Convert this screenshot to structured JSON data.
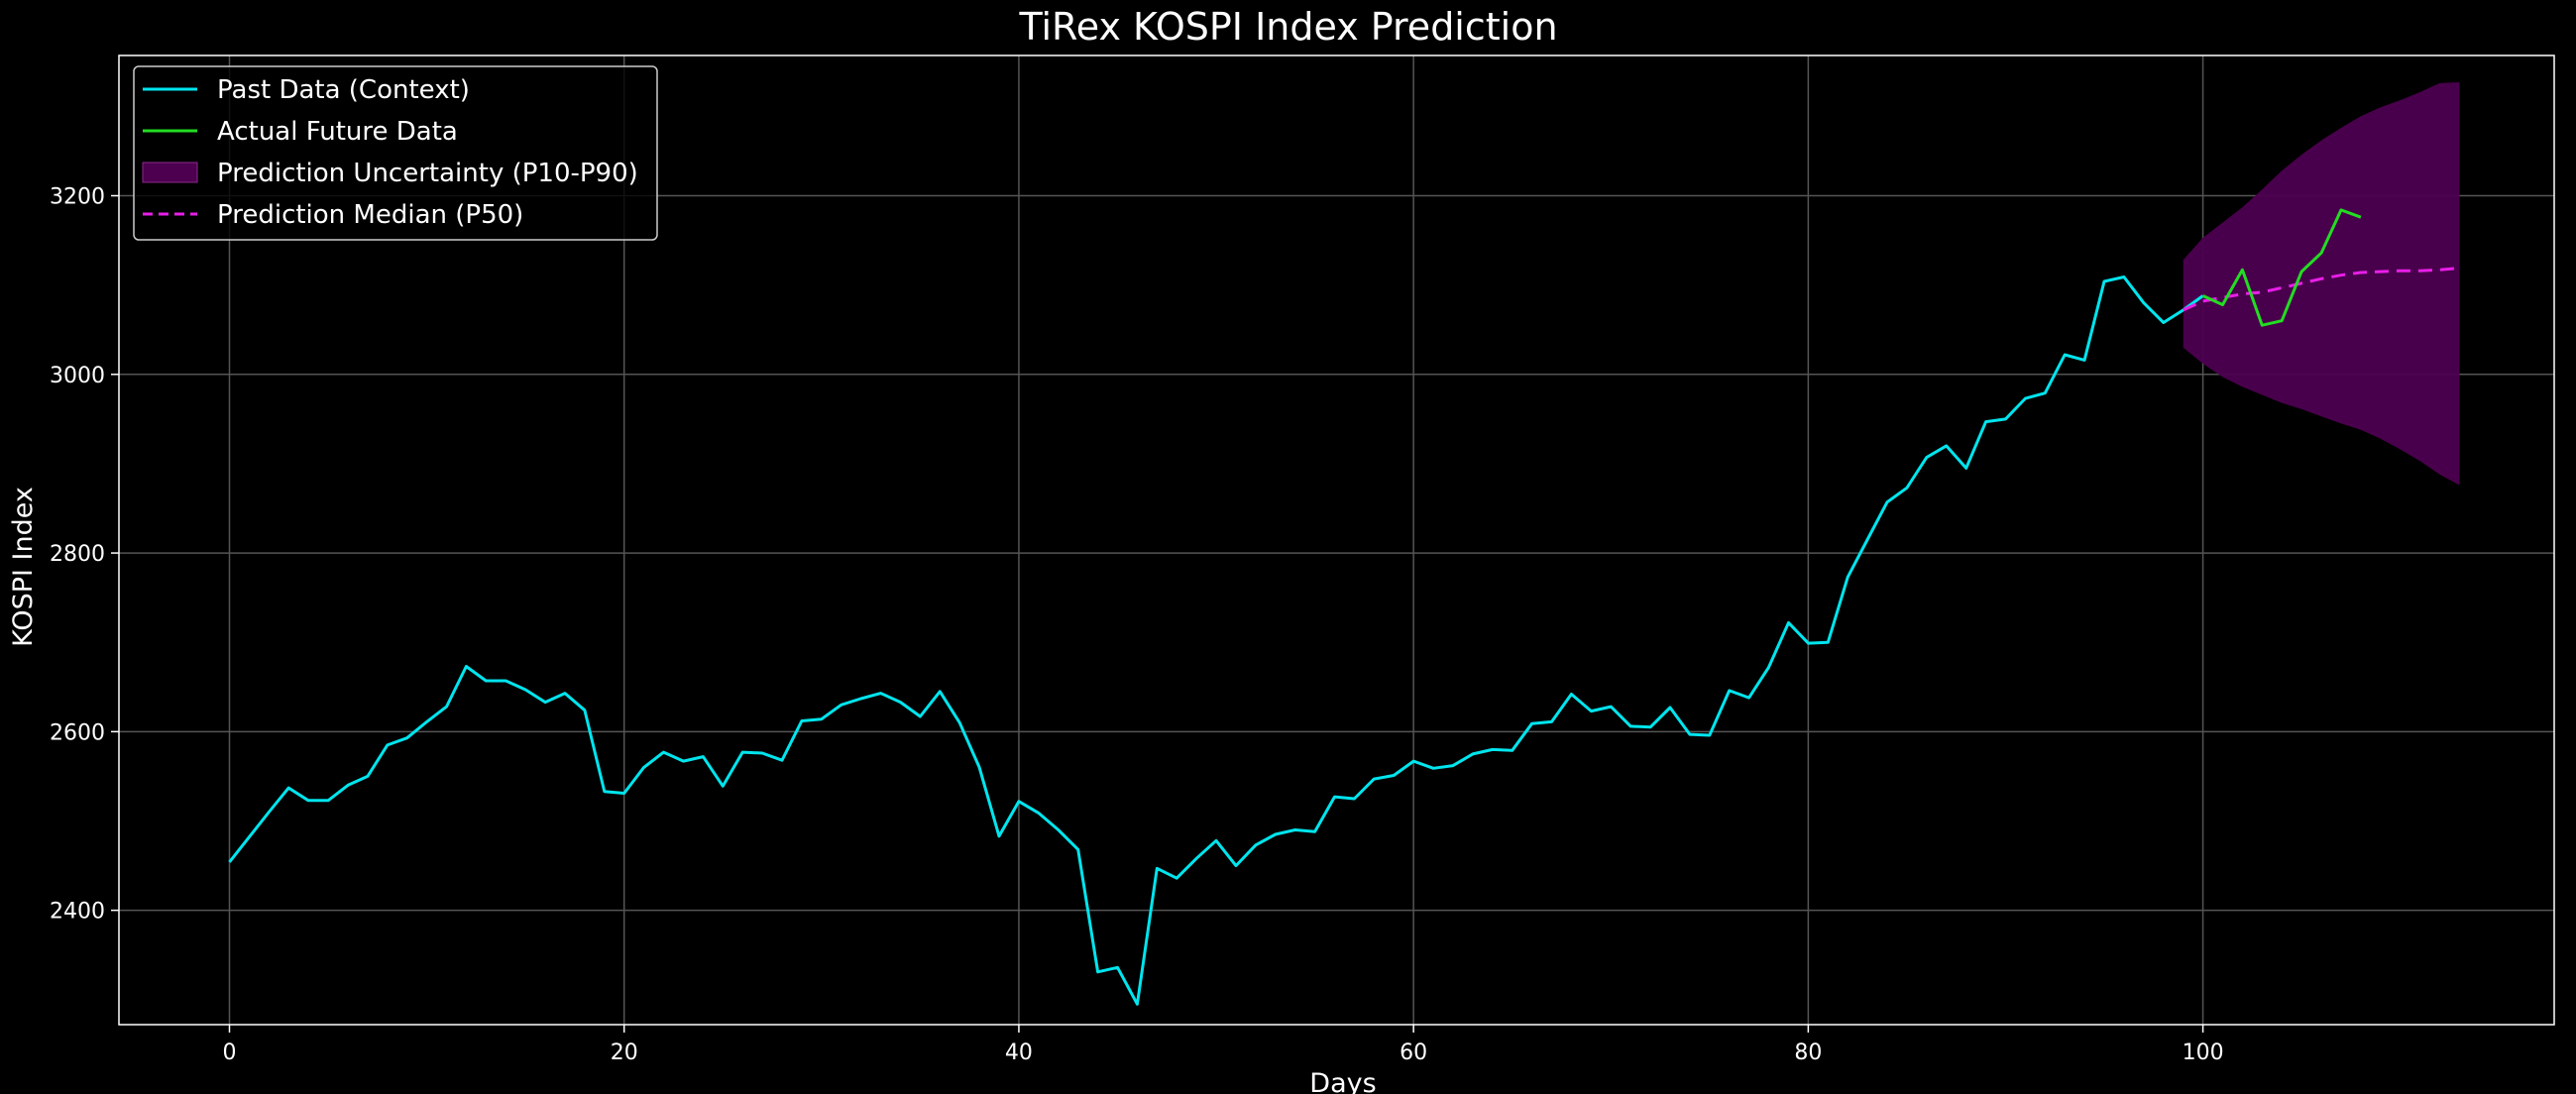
{
  "chart_data": {
    "type": "line",
    "title": "TiRex KOSPI Index Prediction",
    "xlabel": "Days",
    "ylabel": "KOSPI Index",
    "xlim": [
      -5.6,
      117.8
    ],
    "ylim": [
      2272,
      3357
    ],
    "xticks": [
      0,
      20,
      40,
      60,
      80,
      100
    ],
    "yticks": [
      2400,
      2600,
      2800,
      3000,
      3200
    ],
    "grid": true,
    "legend_position": "top-left",
    "colors": {
      "background": "#000000",
      "axes_edge": "#ffffff",
      "grid": "#555555",
      "past": "#00e5ee",
      "actual": "#22dd22",
      "band": "#4d0050",
      "median": "#e81ee8"
    },
    "legend": [
      {
        "label": "Past Data (Context)",
        "kind": "line",
        "color": "#00e5ee"
      },
      {
        "label": "Actual Future Data",
        "kind": "line",
        "color": "#22dd22"
      },
      {
        "label": "Prediction Uncertainty (P10-P90)",
        "kind": "patch",
        "color": "#4d0050"
      },
      {
        "label": "Prediction Median (P50)",
        "kind": "dashed",
        "color": "#e81ee8"
      }
    ],
    "series": [
      {
        "name": "Past Data (Context)",
        "x_start": 0,
        "values": [
          2454,
          2482,
          2510,
          2537,
          2523,
          2523,
          2540,
          2550,
          2585,
          2593,
          2611,
          2628,
          2673,
          2657,
          2657,
          2647,
          2633,
          2643,
          2624,
          2533,
          2531,
          2560,
          2577,
          2567,
          2572,
          2539,
          2577,
          2576,
          2568,
          2612,
          2614,
          2630,
          2637,
          2643,
          2633,
          2617,
          2645,
          2610,
          2560,
          2483,
          2522,
          2509,
          2490,
          2468,
          2331,
          2336,
          2295,
          2447,
          2436,
          2458,
          2478,
          2450,
          2473,
          2485,
          2490,
          2488,
          2527,
          2525,
          2547,
          2551,
          2567,
          2559,
          2562,
          2575,
          2580,
          2579,
          2609,
          2611,
          2642,
          2623,
          2628,
          2606,
          2605,
          2627,
          2597,
          2596,
          2646,
          2638,
          2672,
          2722,
          2699,
          2700,
          2773,
          2815,
          2857,
          2873,
          2907,
          2920,
          2895,
          2947,
          2950,
          2973,
          2979,
          3022,
          3016,
          3104,
          3109,
          3080,
          3058,
          3072,
          3088
        ]
      },
      {
        "name": "Actual Future Data",
        "x": [
          100,
          101,
          102,
          103,
          104,
          105,
          106,
          107,
          108
        ],
        "values": [
          3088,
          3078,
          3117,
          3055,
          3060,
          3115,
          3136,
          3184,
          3176
        ]
      },
      {
        "name": "Prediction Median (P50)",
        "x": [
          99,
          100,
          101,
          102,
          103,
          104,
          105,
          106,
          107,
          108,
          109,
          110,
          111,
          112,
          113
        ],
        "values": [
          3072,
          3082,
          3086,
          3090,
          3092,
          3097,
          3102,
          3107,
          3111,
          3114,
          3115,
          3116,
          3116,
          3117,
          3119
        ]
      }
    ],
    "band": {
      "name": "Prediction Uncertainty (P10-P90)",
      "x": [
        99,
        100,
        101,
        102,
        103,
        104,
        105,
        106,
        107,
        108,
        109,
        110,
        111,
        112,
        113
      ],
      "lower": [
        3030,
        3012,
        2997,
        2986,
        2977,
        2968,
        2961,
        2953,
        2945,
        2938,
        2928,
        2916,
        2903,
        2888,
        2876
      ],
      "upper": [
        3128,
        3153,
        3170,
        3187,
        3207,
        3228,
        3246,
        3262,
        3276,
        3289,
        3299,
        3307,
        3316,
        3326,
        3327
      ]
    }
  }
}
